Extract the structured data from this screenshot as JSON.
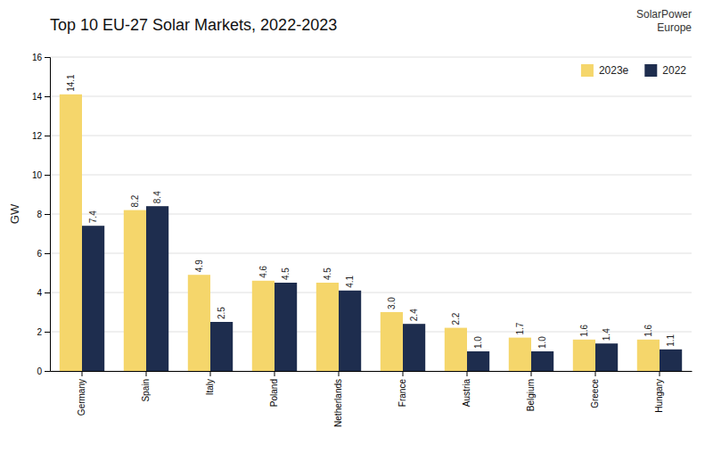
{
  "chart_data": {
    "type": "bar",
    "title": "Top 10 EU-27 Solar Markets, 2022-2023",
    "ylabel": "GW",
    "categories": [
      "Germany",
      "Spain",
      "Italy",
      "Poland",
      "Netherlands",
      "France",
      "Austria",
      "Belgium",
      "Greece",
      "Hungary"
    ],
    "series": [
      {
        "name": "2023e",
        "color": "#F5D66B",
        "values": [
          14.1,
          8.2,
          4.9,
          4.6,
          4.5,
          3.0,
          2.2,
          1.7,
          1.6,
          1.6
        ],
        "value_labels": [
          "14.1",
          "8.2",
          "4.9",
          "4.6",
          "4.5",
          "3.0",
          "2.2",
          "1.7",
          "1.6",
          "1.6"
        ]
      },
      {
        "name": "2022",
        "color": "#1E2D4E",
        "values": [
          7.4,
          8.4,
          2.5,
          4.5,
          4.1,
          2.4,
          1.0,
          1.0,
          1.4,
          1.1
        ],
        "value_labels": [
          "7.4",
          "8.4",
          "2.5",
          "4.5",
          "4.1",
          "2.4",
          "1.0",
          "1.0",
          "1.4",
          "1.1"
        ]
      }
    ],
    "ylim": [
      0,
      16
    ],
    "yticks": [
      0,
      2,
      4,
      6,
      8,
      10,
      12,
      14,
      16
    ],
    "grid": true,
    "legend": "upper right",
    "data_labels": true,
    "annotations": [
      "SolarPower\nEurope"
    ]
  }
}
